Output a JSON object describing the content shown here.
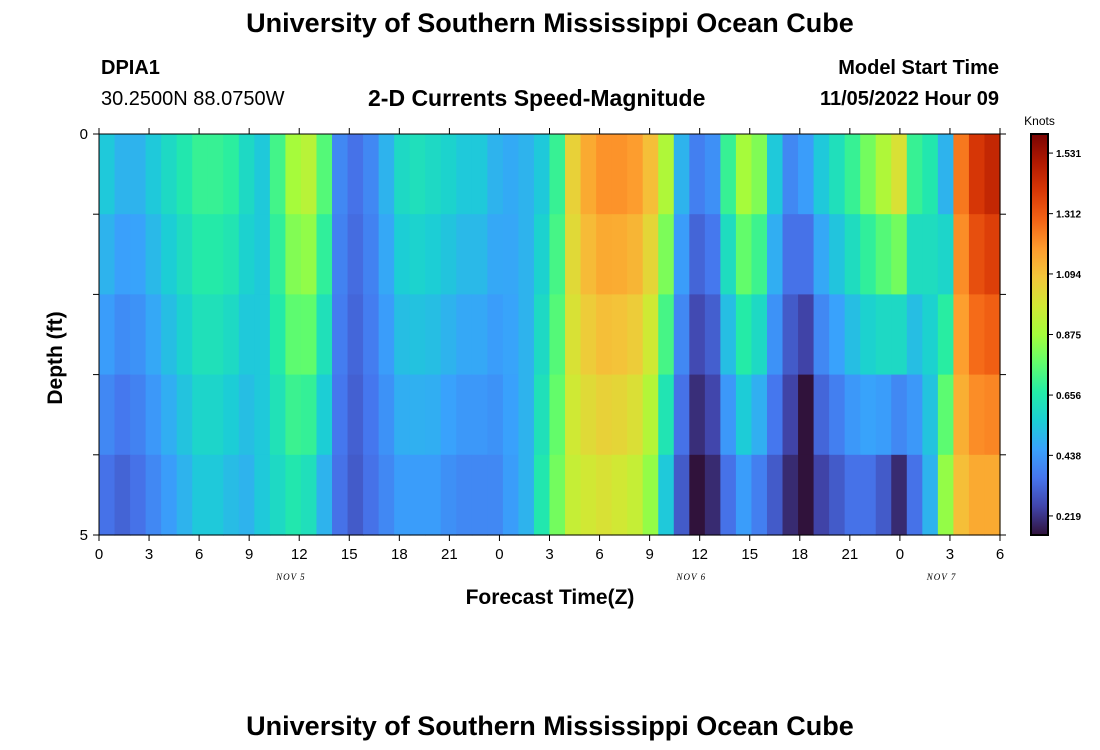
{
  "header": {
    "title": "University of Southern Mississippi Ocean Cube",
    "station_id": "DPIA1",
    "coords": "30.2500N  88.0750W",
    "plot_title": "2-D Currents Speed-Magnitude",
    "model_start_label": "Model Start Time",
    "model_start_value": "11/05/2022 Hour 09"
  },
  "footer": {
    "title": "University of Southern Mississippi Ocean Cube"
  },
  "chart_data": {
    "type": "heatmap",
    "title": "2-D Currents Speed-Magnitude",
    "xlabel": "Forecast Time(Z)",
    "ylabel": "Depth (ft)",
    "x_tick_labels": [
      "0",
      "3",
      "6",
      "9",
      "12",
      "15",
      "18",
      "21",
      "0",
      "3",
      "6",
      "9",
      "12",
      "15",
      "18",
      "21",
      "0",
      "3",
      "6"
    ],
    "date_labels": [
      {
        "label": "NOV 5",
        "at_hour": 11.5
      },
      {
        "label": "NOV 6",
        "at_hour": 35.5
      },
      {
        "label": "NOV 7",
        "at_hour": 50.5
      }
    ],
    "xlim": [
      0,
      54
    ],
    "y_tick_labels": [
      {
        "value": 0,
        "label": "0"
      },
      {
        "value": 5,
        "label": "5"
      }
    ],
    "ylim": [
      0,
      5
    ],
    "depth_layers": 5,
    "colorbar": {
      "title": "Knots",
      "tick_labels": [
        "1.531",
        "1.312",
        "1.094",
        "0.875",
        "0.656",
        "0.438",
        "0.219"
      ],
      "tick_values": [
        1.531,
        1.312,
        1.094,
        0.875,
        0.656,
        0.438,
        0.219
      ],
      "range": [
        0.15,
        1.6
      ]
    },
    "speed_surface_layer_knots": [
      0.55,
      0.5,
      0.5,
      0.55,
      0.6,
      0.65,
      0.7,
      0.7,
      0.68,
      0.6,
      0.55,
      0.72,
      0.88,
      0.92,
      0.75,
      0.4,
      0.35,
      0.4,
      0.5,
      0.6,
      0.62,
      0.6,
      0.58,
      0.55,
      0.55,
      0.5,
      0.48,
      0.5,
      0.55,
      0.7,
      1.05,
      1.15,
      1.2,
      1.2,
      1.18,
      1.1,
      0.9,
      0.5,
      0.38,
      0.42,
      0.7,
      0.88,
      0.82,
      0.55,
      0.4,
      0.45,
      0.55,
      0.62,
      0.7,
      0.8,
      0.9,
      1.0,
      0.7,
      0.65,
      0.5,
      1.25,
      1.4,
      1.45
    ],
    "speed_bottom_layer_knots": [
      0.35,
      0.32,
      0.35,
      0.4,
      0.45,
      0.5,
      0.55,
      0.55,
      0.52,
      0.5,
      0.55,
      0.6,
      0.65,
      0.62,
      0.5,
      0.35,
      0.3,
      0.35,
      0.4,
      0.45,
      0.45,
      0.45,
      0.42,
      0.4,
      0.4,
      0.4,
      0.45,
      0.5,
      0.65,
      0.8,
      0.95,
      0.98,
      1.0,
      0.98,
      0.95,
      0.85,
      0.55,
      0.3,
      0.15,
      0.2,
      0.35,
      0.45,
      0.38,
      0.3,
      0.2,
      0.05,
      0.25,
      0.3,
      0.35,
      0.35,
      0.3,
      0.2,
      0.35,
      0.5,
      0.85,
      1.1,
      1.15,
      1.15
    ]
  },
  "colors": {
    "colormap": [
      "#30123b",
      "#4145ab",
      "#4675ed",
      "#39a2fc",
      "#1bcfd4",
      "#24eca6",
      "#61fc6c",
      "#a4fc3b",
      "#d1e834",
      "#f3c63a",
      "#fe9b2d",
      "#f36315",
      "#d93806",
      "#b11901",
      "#7a0403"
    ]
  }
}
